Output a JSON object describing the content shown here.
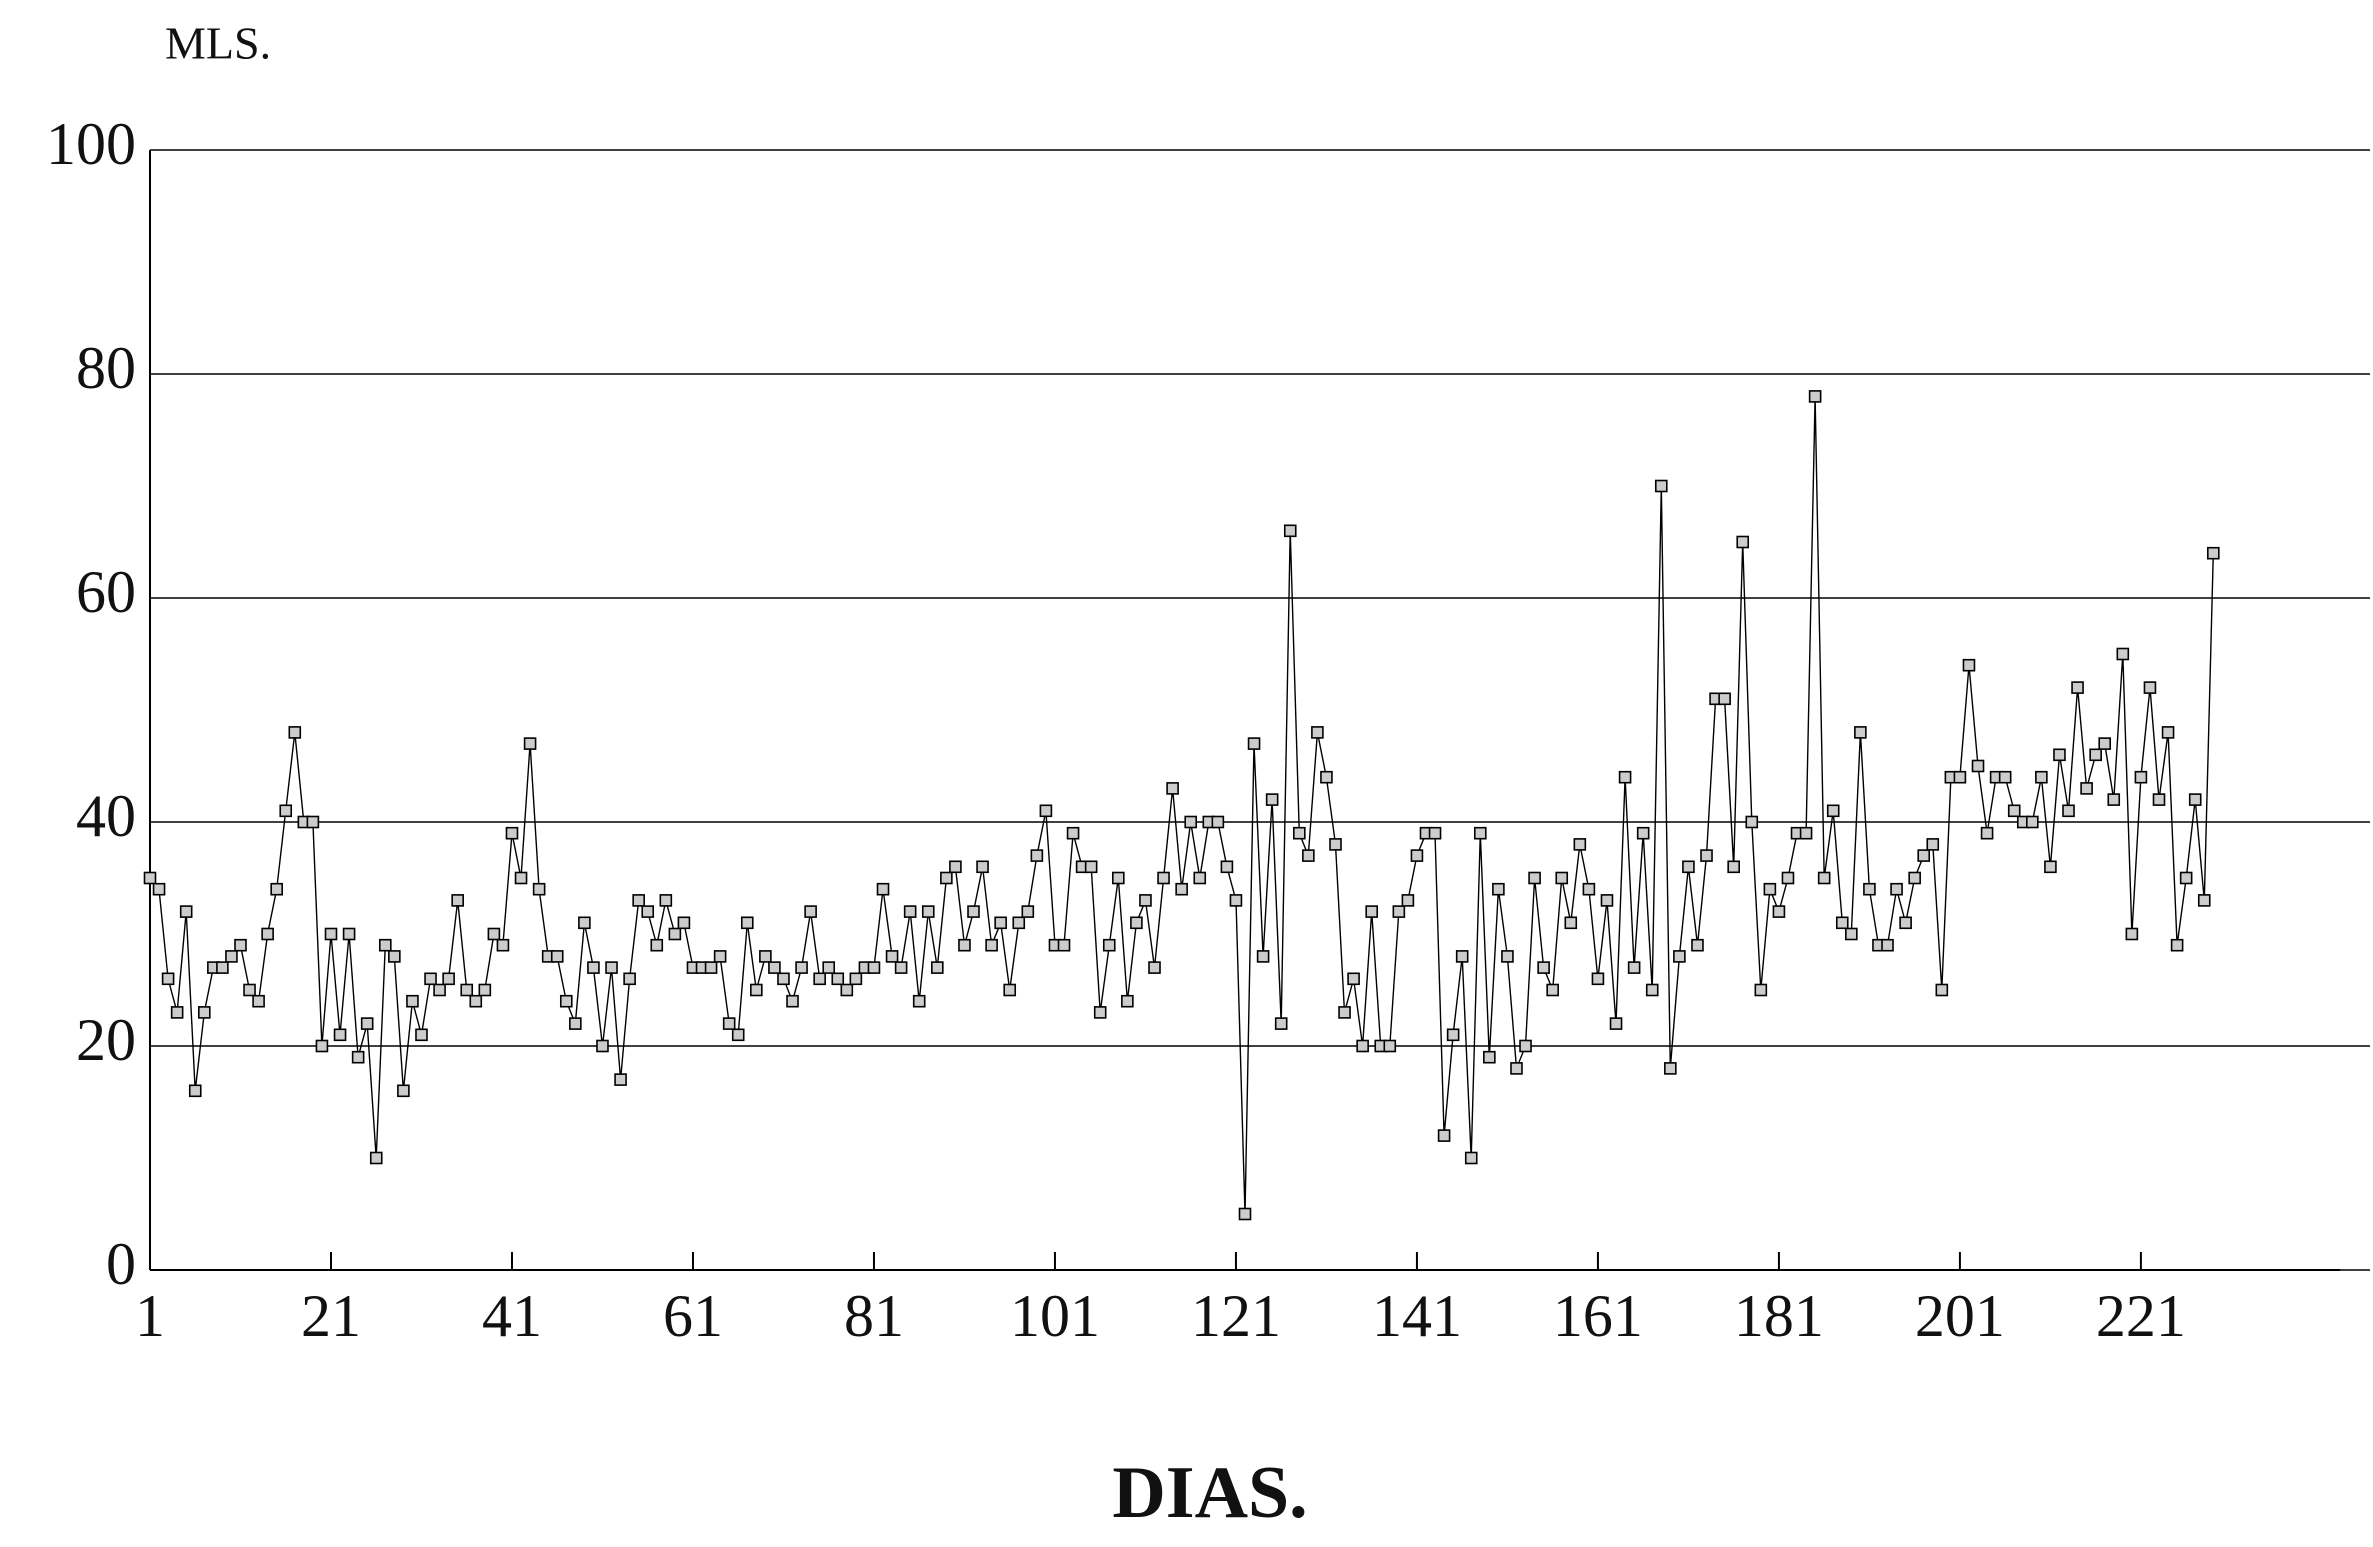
{
  "chart_data": {
    "type": "line",
    "y_title": "MLS.",
    "x_title": "DIAS.",
    "x": [
      1,
      2,
      3,
      4,
      5,
      6,
      7,
      8,
      9,
      10,
      11,
      12,
      13,
      14,
      15,
      16,
      17,
      18,
      19,
      20,
      21,
      22,
      23,
      24,
      25,
      26,
      27,
      28,
      29,
      30,
      31,
      32,
      33,
      34,
      35,
      36,
      37,
      38,
      39,
      40,
      41,
      42,
      43,
      44,
      45,
      46,
      47,
      48,
      49,
      50,
      51,
      52,
      53,
      54,
      55,
      56,
      57,
      58,
      59,
      60,
      61,
      62,
      63,
      64,
      65,
      66,
      67,
      68,
      69,
      70,
      71,
      72,
      73,
      74,
      75,
      76,
      77,
      78,
      79,
      80,
      81,
      82,
      83,
      84,
      85,
      86,
      87,
      88,
      89,
      90,
      91,
      92,
      93,
      94,
      95,
      96,
      97,
      98,
      99,
      100,
      101,
      102,
      103,
      104,
      105,
      106,
      107,
      108,
      109,
      110,
      111,
      112,
      113,
      114,
      115,
      116,
      117,
      118,
      119,
      120,
      121,
      122,
      123,
      124,
      125,
      126,
      127,
      128,
      129,
      130,
      131,
      132,
      133,
      134,
      135,
      136,
      137,
      138,
      139,
      140,
      141,
      142,
      143,
      144,
      145,
      146,
      147,
      148,
      149,
      150,
      151,
      152,
      153,
      154,
      155,
      156,
      157,
      158,
      159,
      160,
      161,
      162,
      163,
      164,
      165,
      166,
      167,
      168,
      169,
      170,
      171,
      172,
      173,
      174,
      175,
      176,
      177,
      178,
      179,
      180,
      181,
      182,
      183,
      184,
      185,
      186,
      187,
      188,
      189,
      190,
      191,
      192,
      193,
      194,
      195,
      196,
      197,
      198,
      199,
      200,
      201,
      202,
      203,
      204,
      205,
      206,
      207,
      208,
      209,
      210,
      211,
      212,
      213,
      214,
      215,
      216,
      217,
      218,
      219,
      220,
      221,
      222,
      223,
      224,
      225,
      226,
      227,
      228,
      229
    ],
    "values": [
      35,
      34,
      26,
      23,
      32,
      16,
      23,
      27,
      27,
      28,
      29,
      25,
      24,
      30,
      34,
      41,
      48,
      40,
      40,
      20,
      30,
      21,
      30,
      19,
      22,
      10,
      29,
      28,
      16,
      24,
      21,
      26,
      25,
      26,
      33,
      25,
      24,
      25,
      30,
      29,
      39,
      35,
      47,
      34,
      28,
      28,
      24,
      22,
      31,
      27,
      20,
      27,
      17,
      26,
      33,
      32,
      29,
      33,
      30,
      31,
      27,
      27,
      27,
      28,
      22,
      21,
      31,
      25,
      28,
      27,
      26,
      24,
      27,
      32,
      26,
      27,
      26,
      25,
      26,
      27,
      27,
      34,
      28,
      27,
      32,
      24,
      32,
      27,
      35,
      36,
      29,
      32,
      36,
      29,
      31,
      25,
      31,
      32,
      37,
      41,
      29,
      29,
      39,
      36,
      36,
      23,
      29,
      35,
      24,
      31,
      33,
      27,
      35,
      43,
      34,
      40,
      35,
      40,
      40,
      36,
      33,
      5,
      47,
      28,
      42,
      22,
      66,
      39,
      37,
      48,
      44,
      38,
      23,
      26,
      20,
      32,
      20,
      20,
      32,
      33,
      37,
      39,
      39,
      12,
      21,
      28,
      10,
      39,
      19,
      34,
      28,
      18,
      20,
      35,
      27,
      25,
      35,
      31,
      38,
      34,
      26,
      33,
      22,
      44,
      27,
      39,
      25,
      70,
      18,
      28,
      36,
      29,
      37,
      51,
      51,
      36,
      65,
      40,
      25,
      34,
      32,
      35,
      39,
      39,
      78,
      35,
      41,
      31,
      30,
      48,
      34,
      29,
      29,
      34,
      31,
      35,
      37,
      38,
      25,
      44,
      44,
      54,
      45,
      39,
      44,
      44,
      41,
      40,
      40,
      44,
      36,
      46,
      41,
      52,
      43,
      46,
      47,
      42,
      55,
      30,
      44,
      52,
      42,
      48,
      29,
      35,
      42,
      33,
      64
    ],
    "color": "#000000",
    "xlim": [
      1,
      243
    ],
    "ylim": [
      0,
      100
    ],
    "xticks": [
      1,
      21,
      41,
      61,
      81,
      101,
      121,
      141,
      161,
      181,
      201,
      221
    ],
    "yticks": [
      0,
      20,
      40,
      60,
      80,
      100
    ],
    "grid": true
  }
}
